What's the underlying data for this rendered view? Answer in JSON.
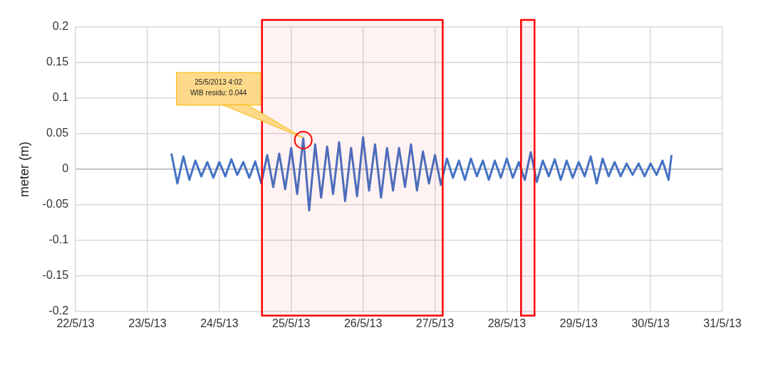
{
  "chart_data": {
    "type": "line",
    "ylabel": "meter (m)",
    "xlim": [
      "2013-05-22",
      "2013-05-31"
    ],
    "xticks": [
      {
        "value": "2013-05-22",
        "label": "22/5/13"
      },
      {
        "value": "2013-05-23",
        "label": "23/5/13"
      },
      {
        "value": "2013-05-24",
        "label": "24/5/13"
      },
      {
        "value": "2013-05-25",
        "label": "25/5/13"
      },
      {
        "value": "2013-05-26",
        "label": "26/5/13"
      },
      {
        "value": "2013-05-27",
        "label": "27/5/13"
      },
      {
        "value": "2013-05-28",
        "label": "28/5/13"
      },
      {
        "value": "2013-05-29",
        "label": "29/5/13"
      },
      {
        "value": "2013-05-30",
        "label": "30/5/13"
      },
      {
        "value": "2013-05-31",
        "label": "31/5/13"
      }
    ],
    "ylim": [
      -0.2,
      0.2
    ],
    "yticks": [
      -0.2,
      -0.15,
      -0.1,
      -0.05,
      0,
      0.05,
      0.1,
      0.15,
      0.2
    ],
    "grid": true,
    "legend": false,
    "marker": "none",
    "line_style": "solid",
    "x": [
      "2013-05-23T08:00",
      "2013-05-23T10:00",
      "2013-05-23T12:00",
      "2013-05-23T14:00",
      "2013-05-23T16:00",
      "2013-05-23T18:00",
      "2013-05-23T20:00",
      "2013-05-23T22:00",
      "2013-05-24T00:00",
      "2013-05-24T02:00",
      "2013-05-24T04:00",
      "2013-05-24T06:00",
      "2013-05-24T08:00",
      "2013-05-24T10:00",
      "2013-05-24T12:00",
      "2013-05-24T14:00",
      "2013-05-24T16:00",
      "2013-05-24T18:00",
      "2013-05-24T20:00",
      "2013-05-24T22:00",
      "2013-05-25T00:00",
      "2013-05-25T02:00",
      "2013-05-25T04:02",
      "2013-05-25T06:00",
      "2013-05-25T08:00",
      "2013-05-25T10:00",
      "2013-05-25T12:00",
      "2013-05-25T14:00",
      "2013-05-25T16:00",
      "2013-05-25T18:00",
      "2013-05-25T20:00",
      "2013-05-25T22:00",
      "2013-05-26T00:00",
      "2013-05-26T02:00",
      "2013-05-26T04:00",
      "2013-05-26T06:00",
      "2013-05-26T08:00",
      "2013-05-26T10:00",
      "2013-05-26T12:00",
      "2013-05-26T14:00",
      "2013-05-26T16:00",
      "2013-05-26T18:00",
      "2013-05-26T20:00",
      "2013-05-26T22:00",
      "2013-05-27T00:00",
      "2013-05-27T02:00",
      "2013-05-27T04:00",
      "2013-05-27T06:00",
      "2013-05-27T08:00",
      "2013-05-27T10:00",
      "2013-05-27T12:00",
      "2013-05-27T14:00",
      "2013-05-27T16:00",
      "2013-05-27T18:00",
      "2013-05-27T20:00",
      "2013-05-27T22:00",
      "2013-05-28T00:00",
      "2013-05-28T02:00",
      "2013-05-28T04:00",
      "2013-05-28T06:00",
      "2013-05-28T08:00",
      "2013-05-28T10:00",
      "2013-05-28T12:00",
      "2013-05-28T14:00",
      "2013-05-28T16:00",
      "2013-05-28T18:00",
      "2013-05-28T20:00",
      "2013-05-28T22:00",
      "2013-05-29T00:00",
      "2013-05-29T02:00",
      "2013-05-29T04:00",
      "2013-05-29T06:00",
      "2013-05-29T08:00",
      "2013-05-29T10:00",
      "2013-05-29T12:00",
      "2013-05-29T14:00",
      "2013-05-29T16:00",
      "2013-05-29T18:00",
      "2013-05-29T20:00",
      "2013-05-29T22:00",
      "2013-05-30T00:00",
      "2013-05-30T02:00",
      "2013-05-30T04:00",
      "2013-05-30T06:00",
      "2013-05-30T07:00"
    ],
    "series": [
      {
        "color": "#4472c4",
        "values": [
          0.022,
          -0.02,
          0.018,
          -0.015,
          0.012,
          -0.01,
          0.01,
          -0.012,
          0.01,
          -0.01,
          0.014,
          -0.008,
          0.01,
          -0.012,
          0.011,
          -0.02,
          0.02,
          -0.025,
          0.022,
          -0.028,
          0.03,
          -0.035,
          0.044,
          -0.058,
          0.035,
          -0.04,
          0.032,
          -0.035,
          0.038,
          -0.045,
          0.03,
          -0.038,
          0.045,
          -0.03,
          0.035,
          -0.04,
          0.03,
          -0.03,
          0.03,
          -0.025,
          0.035,
          -0.03,
          0.025,
          -0.02,
          0.02,
          -0.022,
          0.015,
          -0.012,
          0.012,
          -0.015,
          0.015,
          -0.01,
          0.012,
          -0.015,
          0.012,
          -0.012,
          0.015,
          -0.012,
          0.01,
          -0.015,
          0.024,
          -0.018,
          0.012,
          -0.01,
          0.014,
          -0.015,
          0.012,
          -0.012,
          0.01,
          -0.01,
          0.018,
          -0.02,
          0.015,
          -0.01,
          0.01,
          -0.01,
          0.008,
          -0.008,
          0.008,
          -0.01,
          0.008,
          -0.008,
          0.012,
          -0.015,
          0.02
        ]
      }
    ],
    "annotations": [
      {
        "text": "25/5/2013 4:02\nWIB residu: 0.044",
        "x": "2013-05-25T04:02",
        "y": 0.044
      }
    ],
    "bands": [
      {
        "axis": "x",
        "from": "2013-05-24T14:15",
        "to": "2013-05-27T02:35",
        "color": "#ff0000"
      },
      {
        "axis": "x",
        "from": "2013-05-28T04:45",
        "to": "2013-05-28T09:15",
        "color": "#ff0000"
      }
    ]
  }
}
